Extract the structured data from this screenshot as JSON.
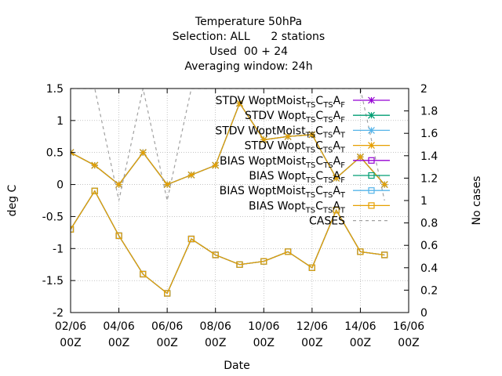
{
  "chart_data": {
    "type": "line",
    "title": [
      "Temperature 50hPa",
      "Selection: ALL      2 stations",
      "Used  00 + 24",
      "Averaging window: 24h"
    ],
    "xlabel": "Date",
    "ylabel": "deg C",
    "y2label": "No cases",
    "ylim": [
      -2,
      1.5
    ],
    "y2lim": [
      0,
      2
    ],
    "yticks": [
      -2,
      -1.5,
      -1,
      -0.5,
      0,
      0.5,
      1,
      1.5
    ],
    "y2ticks": [
      0,
      0.2,
      0.4,
      0.6,
      0.8,
      1,
      1.2,
      1.4,
      1.6,
      1.8,
      2
    ],
    "xlim": [
      "2023-06-02 00Z",
      "2023-06-16 00Z"
    ],
    "xticks": [
      {
        "x": 0,
        "line1": "02/06",
        "line2": "00Z"
      },
      {
        "x": 2,
        "line1": "04/06",
        "line2": "00Z"
      },
      {
        "x": 4,
        "line1": "06/06",
        "line2": "00Z"
      },
      {
        "x": 6,
        "line1": "08/06",
        "line2": "00Z"
      },
      {
        "x": 8,
        "line1": "10/06",
        "line2": "00Z"
      },
      {
        "x": 10,
        "line1": "12/06",
        "line2": "00Z"
      },
      {
        "x": 12,
        "line1": "14/06",
        "line2": "00Z"
      },
      {
        "x": 14,
        "line1": "16/06",
        "line2": "00Z"
      }
    ],
    "grid": true,
    "legend_position": "top-right",
    "x": [
      0,
      1,
      2,
      3,
      4,
      5,
      6,
      7,
      8,
      9,
      10,
      11,
      12,
      13
    ],
    "series": [
      {
        "name": "STDV WoptMoist",
        "sub": "TS",
        "mid": "C",
        "sub2": "TS",
        "end": "A",
        "sub3": "F",
        "color": "#9400d3",
        "marker": "star",
        "axis": "y",
        "values": [
          0.5,
          0.3,
          0.0,
          0.5,
          0.0,
          0.15,
          0.3,
          1.27,
          0.7,
          0.75,
          0.78,
          0.1,
          0.43,
          0.0
        ]
      },
      {
        "name": "STDV Wopt",
        "sub": "TS",
        "mid": "C",
        "sub2": "TS",
        "end": "A",
        "sub3": "F",
        "color": "#009e73",
        "marker": "star",
        "axis": "y",
        "values": [
          0.5,
          0.3,
          0.0,
          0.5,
          0.0,
          0.15,
          0.3,
          1.27,
          0.7,
          0.75,
          0.78,
          0.1,
          0.43,
          0.0
        ]
      },
      {
        "name": "STDV WoptMoist",
        "sub": "TS",
        "mid": "C",
        "sub2": "TS",
        "end": "A",
        "sub3": "T",
        "color": "#56b4e9",
        "marker": "star",
        "axis": "y",
        "values": [
          0.5,
          0.3,
          0.0,
          0.5,
          0.0,
          0.15,
          0.3,
          1.27,
          0.7,
          0.75,
          0.78,
          0.1,
          0.43,
          0.0
        ]
      },
      {
        "name": "STDV Wopt",
        "sub": "TS",
        "mid": "C",
        "sub2": "TS",
        "end": "A",
        "sub3": "T",
        "color": "#e69f00",
        "marker": "star",
        "axis": "y",
        "values": [
          0.5,
          0.3,
          0.0,
          0.5,
          0.0,
          0.15,
          0.3,
          1.27,
          0.7,
          0.75,
          0.78,
          0.1,
          0.43,
          0.0
        ]
      },
      {
        "name": "BIAS WoptMoist",
        "sub": "TS",
        "mid": "C",
        "sub2": "TS",
        "end": "A",
        "sub3": "F",
        "color": "#9400d3",
        "marker": "square",
        "axis": "y",
        "values": [
          -0.7,
          -0.1,
          -0.8,
          -1.4,
          -1.7,
          -0.85,
          -1.1,
          -1.25,
          -1.2,
          -1.05,
          -1.3,
          -0.4,
          -1.05,
          -1.1
        ]
      },
      {
        "name": "BIAS Wopt",
        "sub": "TS",
        "mid": "C",
        "sub2": "TS",
        "end": "A",
        "sub3": "F",
        "color": "#009e73",
        "marker": "square",
        "axis": "y",
        "values": [
          -0.7,
          -0.1,
          -0.8,
          -1.4,
          -1.7,
          -0.85,
          -1.1,
          -1.25,
          -1.2,
          -1.05,
          -1.3,
          -0.4,
          -1.05,
          -1.1
        ]
      },
      {
        "name": "BIAS WoptMoist",
        "sub": "TS",
        "mid": "C",
        "sub2": "TS",
        "end": "A",
        "sub3": "T",
        "color": "#56b4e9",
        "marker": "square",
        "axis": "y",
        "values": [
          -0.7,
          -0.1,
          -0.8,
          -1.4,
          -1.7,
          -0.85,
          -1.1,
          -1.25,
          -1.2,
          -1.05,
          -1.3,
          -0.4,
          -1.05,
          -1.1
        ]
      },
      {
        "name": "BIAS Wopt",
        "sub": "TS",
        "mid": "C",
        "sub2": "TS",
        "end": "A",
        "sub3": "T",
        "color": "#e69f00",
        "marker": "square",
        "axis": "y",
        "values": [
          -0.7,
          -0.1,
          -0.8,
          -1.4,
          -1.7,
          -0.85,
          -1.1,
          -1.25,
          -1.2,
          -1.05,
          -1.3,
          -0.4,
          -1.05,
          -1.1
        ]
      },
      {
        "name": "CASES",
        "color": "#a0a0a0",
        "marker": "none",
        "dashed": true,
        "axis": "y2",
        "values": [
          2,
          2,
          1,
          2,
          1,
          2,
          2,
          2,
          2,
          2,
          2,
          2,
          2,
          1
        ]
      }
    ]
  }
}
